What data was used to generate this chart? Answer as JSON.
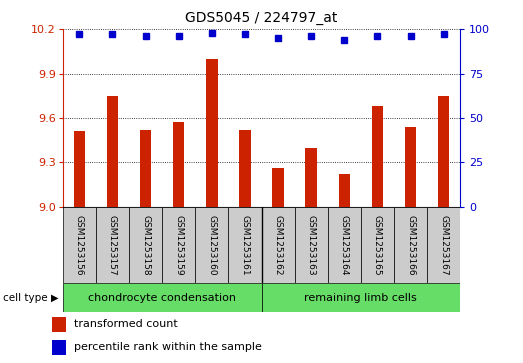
{
  "title": "GDS5045 / 224797_at",
  "samples": [
    "GSM1253156",
    "GSM1253157",
    "GSM1253158",
    "GSM1253159",
    "GSM1253160",
    "GSM1253161",
    "GSM1253162",
    "GSM1253163",
    "GSM1253164",
    "GSM1253165",
    "GSM1253166",
    "GSM1253167"
  ],
  "transformed_counts": [
    9.51,
    9.75,
    9.52,
    9.57,
    10.0,
    9.52,
    9.26,
    9.4,
    9.22,
    9.68,
    9.54,
    9.75
  ],
  "percentile_ranks": [
    97,
    97,
    96,
    96,
    98,
    97,
    95,
    96,
    94,
    96,
    96,
    97
  ],
  "ylim_left": [
    9.0,
    10.2
  ],
  "ylim_right": [
    0,
    100
  ],
  "yticks_left": [
    9.0,
    9.3,
    9.6,
    9.9,
    10.2
  ],
  "yticks_right": [
    0,
    25,
    50,
    75,
    100
  ],
  "bar_color": "#cc2200",
  "dot_color": "#0000cc",
  "group1_label": "chondrocyte condensation",
  "group1_count": 6,
  "group2_label": "remaining limb cells",
  "group2_count": 6,
  "group_bar_color": "#66dd66",
  "sample_box_color": "#cccccc",
  "cell_type_label": "cell type",
  "legend1": "transformed count",
  "legend2": "percentile rank within the sample",
  "gridline_color": "#000000",
  "title_fontsize": 10,
  "tick_fontsize": 8,
  "axis_color_left": "#cc2200",
  "axis_color_right": "#0000cc",
  "bar_width": 0.35,
  "dot_size": 5
}
